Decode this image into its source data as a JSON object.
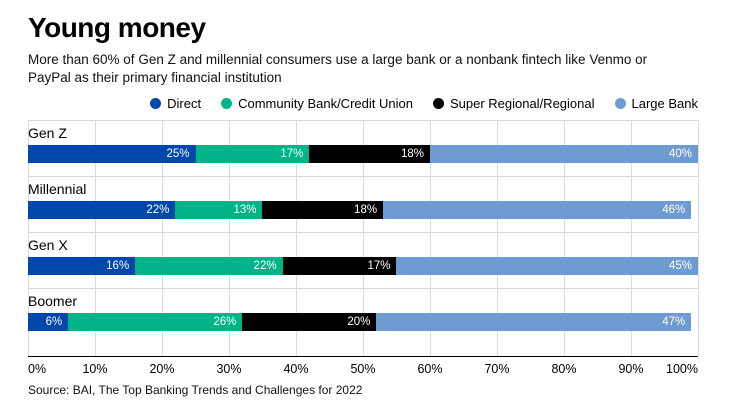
{
  "title": "Young money",
  "subtitle": "More than 60% of Gen Z and millennial consumers use a large bank or a nonbank fintech like Venmo or PayPal as their primary financial institution",
  "source": "Source: BAI, The Top Banking Trends and Challenges for 2022",
  "chart_data": {
    "type": "bar",
    "orientation": "horizontal",
    "stacked": true,
    "title": "Young money",
    "categories": [
      "Gen Z",
      "Millennial",
      "Gen X",
      "Boomer"
    ],
    "series": [
      {
        "name": "Direct",
        "color": "#0047ab",
        "values": [
          25,
          22,
          16,
          6
        ]
      },
      {
        "name": "Community Bank/Credit Union",
        "color": "#00b388",
        "values": [
          17,
          13,
          22,
          26
        ]
      },
      {
        "name": "Super Regional/Regional",
        "color": "#000000",
        "values": [
          18,
          18,
          17,
          20
        ]
      },
      {
        "name": "Large Bank",
        "color": "#6e9bd1",
        "values": [
          40,
          46,
          45,
          47
        ]
      }
    ],
    "x_ticks": [
      "0%",
      "10%",
      "20%",
      "30%",
      "40%",
      "50%",
      "60%",
      "70%",
      "80%",
      "90%",
      "100%"
    ],
    "xlim": [
      0,
      100
    ],
    "grid": true,
    "legend_position": "top-right",
    "value_label_format": "inside-right-white"
  }
}
